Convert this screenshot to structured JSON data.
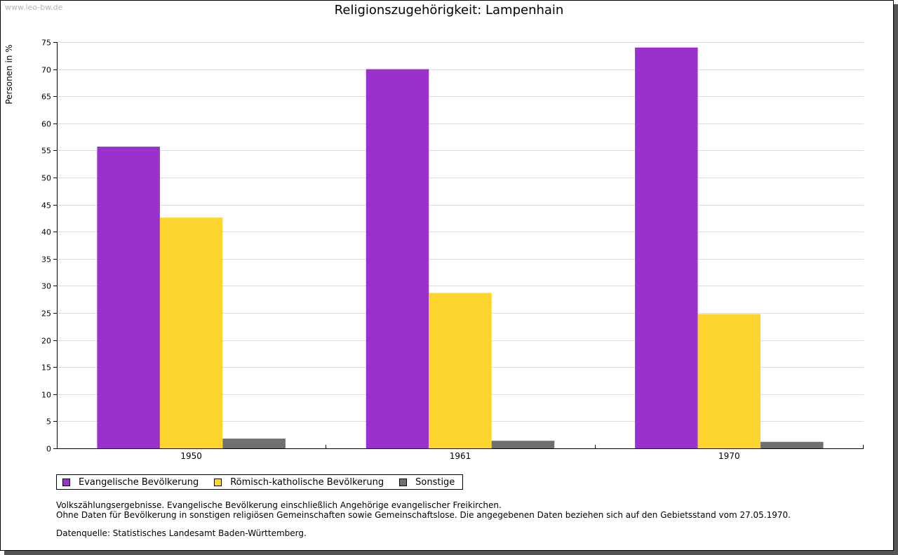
{
  "watermark": "www.leo-bw.de",
  "chart_data": {
    "type": "bar",
    "title": "Religionszugehörigkeit: Lampenhain",
    "ylabel": "Personen in %",
    "xlabel": "",
    "ylim": [
      0,
      75
    ],
    "yticks": [
      0,
      5,
      10,
      15,
      20,
      25,
      30,
      35,
      40,
      45,
      50,
      55,
      60,
      65,
      70,
      75
    ],
    "grid": true,
    "categories": [
      "1950",
      "1961",
      "1970"
    ],
    "series": [
      {
        "name": "Evangelische Bevölkerung",
        "color": "#9932CC",
        "values": [
          55.7,
          70.0,
          74.0
        ]
      },
      {
        "name": "Römisch-katholische Bevölkerung",
        "color": "#FCD62E",
        "values": [
          42.6,
          28.7,
          24.8
        ]
      },
      {
        "name": "Sonstige",
        "color": "#707070",
        "values": [
          1.8,
          1.4,
          1.2
        ]
      }
    ],
    "legend": "bottom"
  },
  "notes": {
    "line1": "Volkszählungsergebnisse. Evangelische Bevölkerung einschließlich Angehörige evangelischer Freikirchen.",
    "line2": "Ohne Daten für Bevölkerung in sonstigen religiösen Gemeinschaften sowie Gemeinschaftslose. Die angegebenen Daten beziehen sich auf den Gebietsstand vom 27.05.1970.",
    "source": "Datenquelle: Statistisches Landesamt Baden-Württemberg."
  }
}
